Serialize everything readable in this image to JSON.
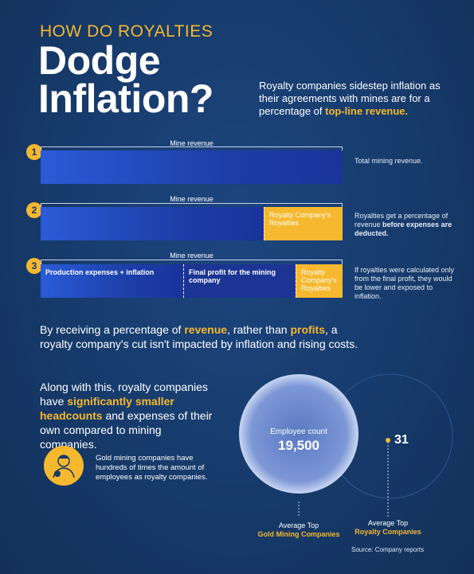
{
  "header": {
    "kicker": "HOW DO ROYALTIES",
    "title_lines": [
      "Dodge",
      "Inflation?"
    ],
    "intro": [
      "Royalty companies sidestep inflation as their agreements with mines are for a percentage of ",
      "top-line revenue."
    ]
  },
  "steps": [
    {
      "number": "1",
      "bar_label": "Mine revenue",
      "segments": [],
      "note": [
        "Total mining revenue."
      ]
    },
    {
      "number": "2",
      "bar_label": "Mine revenue",
      "segments": [
        "Royalty Company's Royalties"
      ],
      "note": [
        "Royalties get a percentage of revenue ",
        "before expenses are deducted."
      ]
    },
    {
      "number": "3",
      "bar_label": "Mine revenue",
      "segments": [
        "Production expenses + inflation",
        "Final profit for the mining company",
        "Royalty Company's Royalties"
      ],
      "note": [
        "If royalties were calculated only from the final profit, they would be lower and exposed to inflation."
      ]
    }
  ],
  "paragraph": [
    "By receiving a percentage of ",
    "revenue",
    ", rather than ",
    "profits",
    ", a royalty company's cut isn't impacted by inflation and rising costs."
  ],
  "headcount": [
    "Along with this, royalty companies have ",
    "significantly smaller headcounts",
    " and expenses of their own compared to mining companies."
  ],
  "icon_note": "Gold mining companies have hundreds of times the amount of employees as royalty companies.",
  "comparison": {
    "metric": "Employee count",
    "gold": {
      "value": "19,500",
      "label_top": "Average Top",
      "label": "Gold Mining Companies"
    },
    "royalty": {
      "value": "31",
      "label_top": "Average Top",
      "label": "Royalty Companies"
    }
  },
  "source": "Source: Company reports"
}
